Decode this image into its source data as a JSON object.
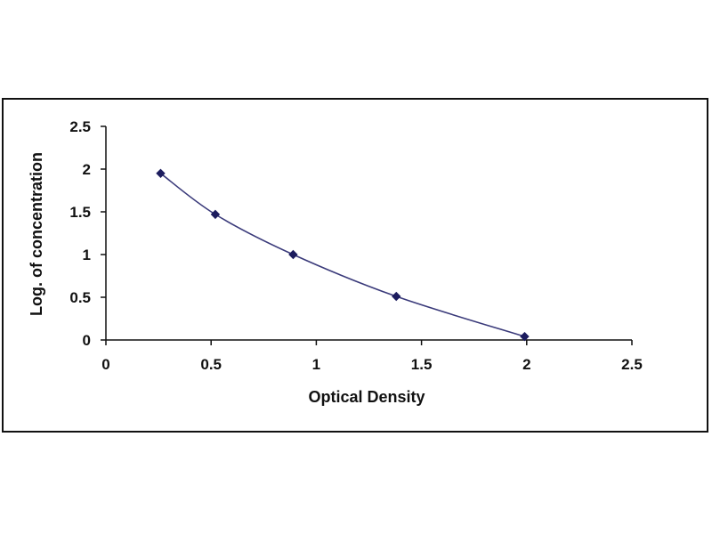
{
  "chart_data": {
    "type": "scatter",
    "xlabel": "Optical Density",
    "ylabel": "Log. of concentration",
    "xlim": [
      0,
      2.5
    ],
    "ylim": [
      0,
      2.5
    ],
    "x_ticks": [
      "0",
      "0.5",
      "1",
      "1.5",
      "2",
      "2.5"
    ],
    "y_ticks": [
      "0",
      "0.5",
      "1",
      "1.5",
      "2",
      "2.5"
    ],
    "grid": false,
    "legend": "none",
    "series": [
      {
        "points": [
          {
            "x": 0.26,
            "y": 1.95
          },
          {
            "x": 0.52,
            "y": 1.47
          },
          {
            "x": 0.89,
            "y": 1.0
          },
          {
            "x": 1.38,
            "y": 0.51
          },
          {
            "x": 1.99,
            "y": 0.04
          }
        ],
        "marker": "diamond",
        "color": "#1c1c5e",
        "trendline": "smooth-curve"
      }
    ]
  },
  "colors": {
    "marker": "#1c1c5e",
    "curve": "#3a3a7a",
    "axis": "#111111",
    "frame": "#111111"
  }
}
